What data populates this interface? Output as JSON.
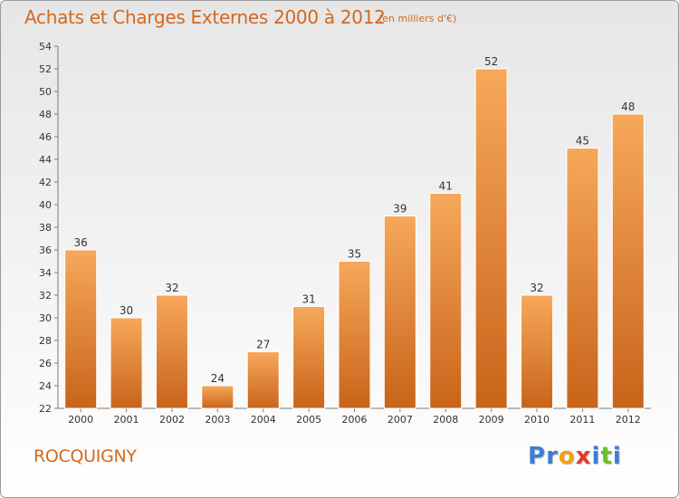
{
  "header": {
    "title": "Achats et Charges Externes 2000 à 2012",
    "subtitle": "(en milliers d'€)"
  },
  "footer": {
    "place": "ROCQUIGNY",
    "logo_letters": [
      {
        "ch": "P",
        "color": "#3a7fd5"
      },
      {
        "ch": "r",
        "color": "#3a7fd5"
      },
      {
        "ch": "o",
        "color": "#f2a20c"
      },
      {
        "ch": "x",
        "color": "#e23a2d"
      },
      {
        "ch": "i",
        "color": "#3a7fd5"
      },
      {
        "ch": "t",
        "color": "#6cbf2a"
      },
      {
        "ch": "i",
        "color": "#3a7fd5"
      }
    ]
  },
  "chart_data": {
    "type": "bar",
    "title": "Achats et Charges Externes 2000 à 2012",
    "subtitle": "(en milliers d'€)",
    "xlabel": "",
    "ylabel": "",
    "categories": [
      "2000",
      "2001",
      "2002",
      "2003",
      "2004",
      "2005",
      "2006",
      "2007",
      "2008",
      "2009",
      "2010",
      "2011",
      "2012"
    ],
    "values": [
      36,
      30,
      32,
      24,
      27,
      31,
      35,
      39,
      41,
      52,
      32,
      45,
      48
    ],
    "ylim": [
      22,
      54
    ],
    "ytick_step": 2,
    "grid": false,
    "legend": "none",
    "bar_color_top": "#f7a85a",
    "bar_color_bottom": "#c8641a",
    "axis_color": "#7a7a7a"
  }
}
